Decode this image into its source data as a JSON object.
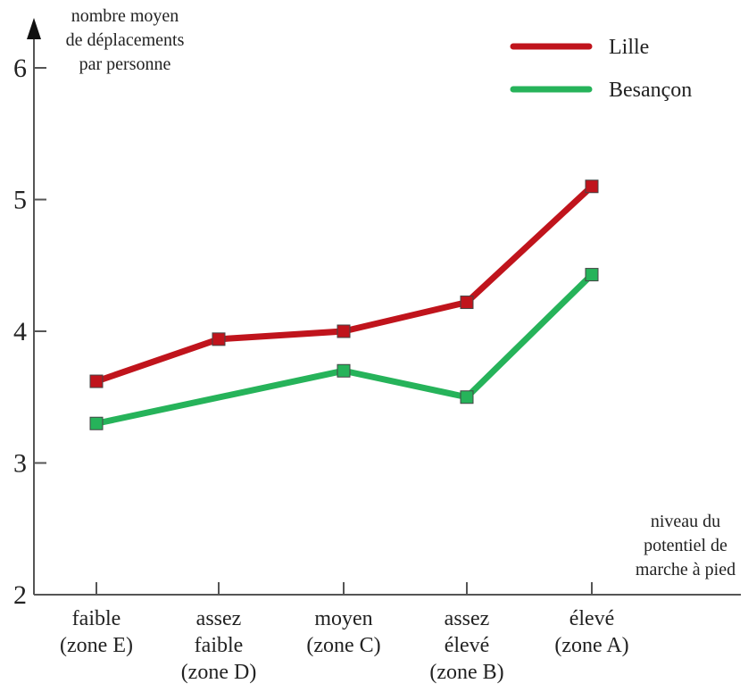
{
  "chart_data": {
    "type": "line",
    "categories": [
      [
        "faible",
        "(zone E)"
      ],
      [
        "assez",
        "faible",
        "(zone D)"
      ],
      [
        "moyen",
        "(zone C)"
      ],
      [
        "assez",
        "élevé",
        "(zone B)"
      ],
      [
        "élevé",
        "(zone A)"
      ]
    ],
    "series": [
      {
        "name": "Lille",
        "values": [
          3.62,
          3.94,
          4.0,
          4.22,
          5.1
        ],
        "color": "#c0141c"
      },
      {
        "name": "Besançon",
        "values": [
          3.3,
          null,
          3.7,
          3.5,
          4.43
        ],
        "color": "#26b35a"
      }
    ],
    "ylabel": [
      "nombre moyen",
      "de déplacements",
      "par personne"
    ],
    "xlabel": [
      "niveau du",
      "potentiel de",
      "marche à pied"
    ],
    "ylim": [
      2,
      6
    ],
    "yticks": [
      2,
      3,
      4,
      5,
      6
    ],
    "grid": false,
    "legend": "top-right"
  }
}
